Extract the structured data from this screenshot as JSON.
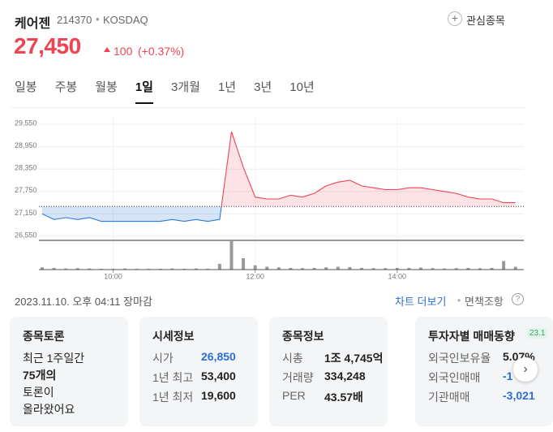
{
  "header": {
    "name": "케어젠",
    "code": "214370",
    "market": "KOSDAQ",
    "watch": "관심종목",
    "price": "27,450",
    "change": "100",
    "change_pct": "(+0.37%)"
  },
  "tabs": [
    "일봉",
    "주봉",
    "월봉",
    "1일",
    "3개월",
    "1년",
    "3년",
    "10년"
  ],
  "active_tab": 3,
  "chart": {
    "type": "line",
    "x": [
      "09:00",
      "09:10",
      "09:20",
      "09:30",
      "09:40",
      "09:50",
      "10:00",
      "10:10",
      "10:20",
      "10:30",
      "10:40",
      "10:50",
      "11:00",
      "11:10",
      "11:20",
      "11:30",
      "11:40",
      "11:50",
      "12:00",
      "12:10",
      "12:20",
      "12:30",
      "12:40",
      "12:50",
      "13:00",
      "13:10",
      "13:20",
      "13:30",
      "13:40",
      "13:50",
      "14:00",
      "14:10",
      "14:20",
      "14:30",
      "14:40",
      "14:50",
      "15:00",
      "15:10",
      "15:20",
      "15:30",
      "15:40"
    ],
    "values": [
      27150,
      27000,
      27050,
      27000,
      27050,
      26950,
      26950,
      26950,
      26950,
      26950,
      26950,
      27000,
      26950,
      27000,
      26950,
      27000,
      29350,
      28400,
      27600,
      27550,
      27550,
      27650,
      27600,
      27700,
      27900,
      28000,
      28050,
      27900,
      27850,
      27800,
      27800,
      27850,
      27850,
      27800,
      27750,
      27700,
      27600,
      27550,
      27550,
      27450,
      27450
    ],
    "volume": [
      8,
      6,
      4,
      5,
      4,
      3,
      3,
      4,
      3,
      3,
      3,
      4,
      3,
      4,
      3,
      20,
      100,
      40,
      15,
      10,
      8,
      6,
      5,
      6,
      8,
      10,
      9,
      6,
      5,
      5,
      6,
      6,
      7,
      5,
      4,
      5,
      6,
      5,
      6,
      30,
      10
    ],
    "base": 27350,
    "xlim": [
      "09:00",
      "15:45"
    ],
    "xticks": [
      "10:00",
      "12:00",
      "14:00"
    ],
    "ylim": [
      26550,
      29550
    ],
    "yticks": [
      {
        "value": 26550,
        "label": "26,550"
      },
      {
        "value": 27150,
        "label": "27,150"
      },
      {
        "value": 27750,
        "label": "27,750"
      },
      {
        "value": 28350,
        "label": "28,350"
      },
      {
        "value": 28950,
        "label": "28,950"
      },
      {
        "value": 29550,
        "label": "29,550"
      }
    ],
    "up_color": "#f04452",
    "down_color": "#2b7bd8",
    "volume_color": "#999999"
  },
  "footer": {
    "timestamp": "2023.11.10. 오후 04:11 장마감",
    "more": "차트 더보기",
    "disclaimer": "면책조항"
  },
  "cards": [
    {
      "title": "종목토론",
      "lines": [
        "최근 1주일간",
        "75개의",
        "토론이",
        "올라왔어요"
      ]
    },
    {
      "title": "시세정보",
      "rows": [
        [
          "시가",
          "26,850"
        ],
        [
          "1년 최고",
          "53,400"
        ],
        [
          "1년 최저",
          "19,600"
        ]
      ]
    },
    {
      "title": "종목정보",
      "rows": [
        [
          "시총",
          "1조 4,745억"
        ],
        [
          "거래량",
          "334,248"
        ],
        [
          "PER",
          "43.57배"
        ]
      ]
    },
    {
      "title": "투자자별 매매동향",
      "badge": "23.1",
      "rows": [
        [
          "외국인보유율",
          "5.07%"
        ],
        [
          "외국인매매",
          "-1"
        ],
        [
          "기관매매",
          "-3,021"
        ]
      ]
    }
  ]
}
